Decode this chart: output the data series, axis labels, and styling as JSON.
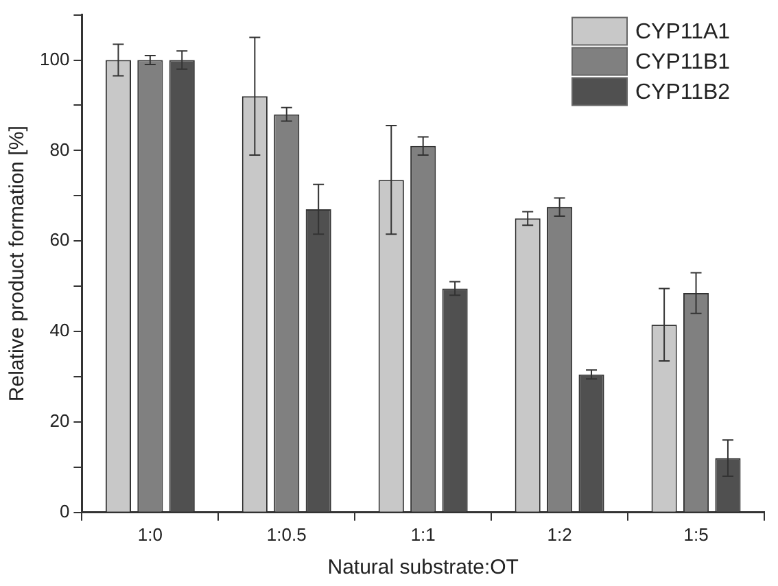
{
  "chart_data": {
    "type": "bar",
    "xlabel": "Natural substrate:OT",
    "ylabel": "Relative product formation [%]",
    "categories": [
      "1:0",
      "1:0.5",
      "1:1",
      "1:2",
      "1:5"
    ],
    "series": [
      {
        "name": "CYP11A1",
        "color": "#c8c8c8",
        "values": [
          100,
          92,
          73.5,
          65,
          41.5
        ],
        "errors": [
          3.5,
          13,
          12,
          1.5,
          8
        ]
      },
      {
        "name": "CYP11B1",
        "color": "#808080",
        "values": [
          100,
          88,
          81,
          67.5,
          48.5
        ],
        "errors": [
          1,
          1.5,
          2,
          2,
          4.5
        ]
      },
      {
        "name": "CYP11B2",
        "color": "#505050",
        "values": [
          100,
          67,
          49.5,
          30.5,
          12
        ],
        "errors": [
          2,
          5.5,
          1.5,
          1,
          4
        ]
      }
    ],
    "ylim": [
      0,
      110
    ],
    "yticks": [
      0,
      {
        "value": 10,
        "label": null
      },
      20,
      {
        "value": 30,
        "label": null
      },
      40,
      {
        "value": 50,
        "label": null
      },
      60,
      {
        "value": 70,
        "label": null
      },
      80,
      {
        "value": 90,
        "label": null
      },
      100,
      {
        "value": 110,
        "label": null
      }
    ],
    "grid": false,
    "legend": "top right"
  }
}
